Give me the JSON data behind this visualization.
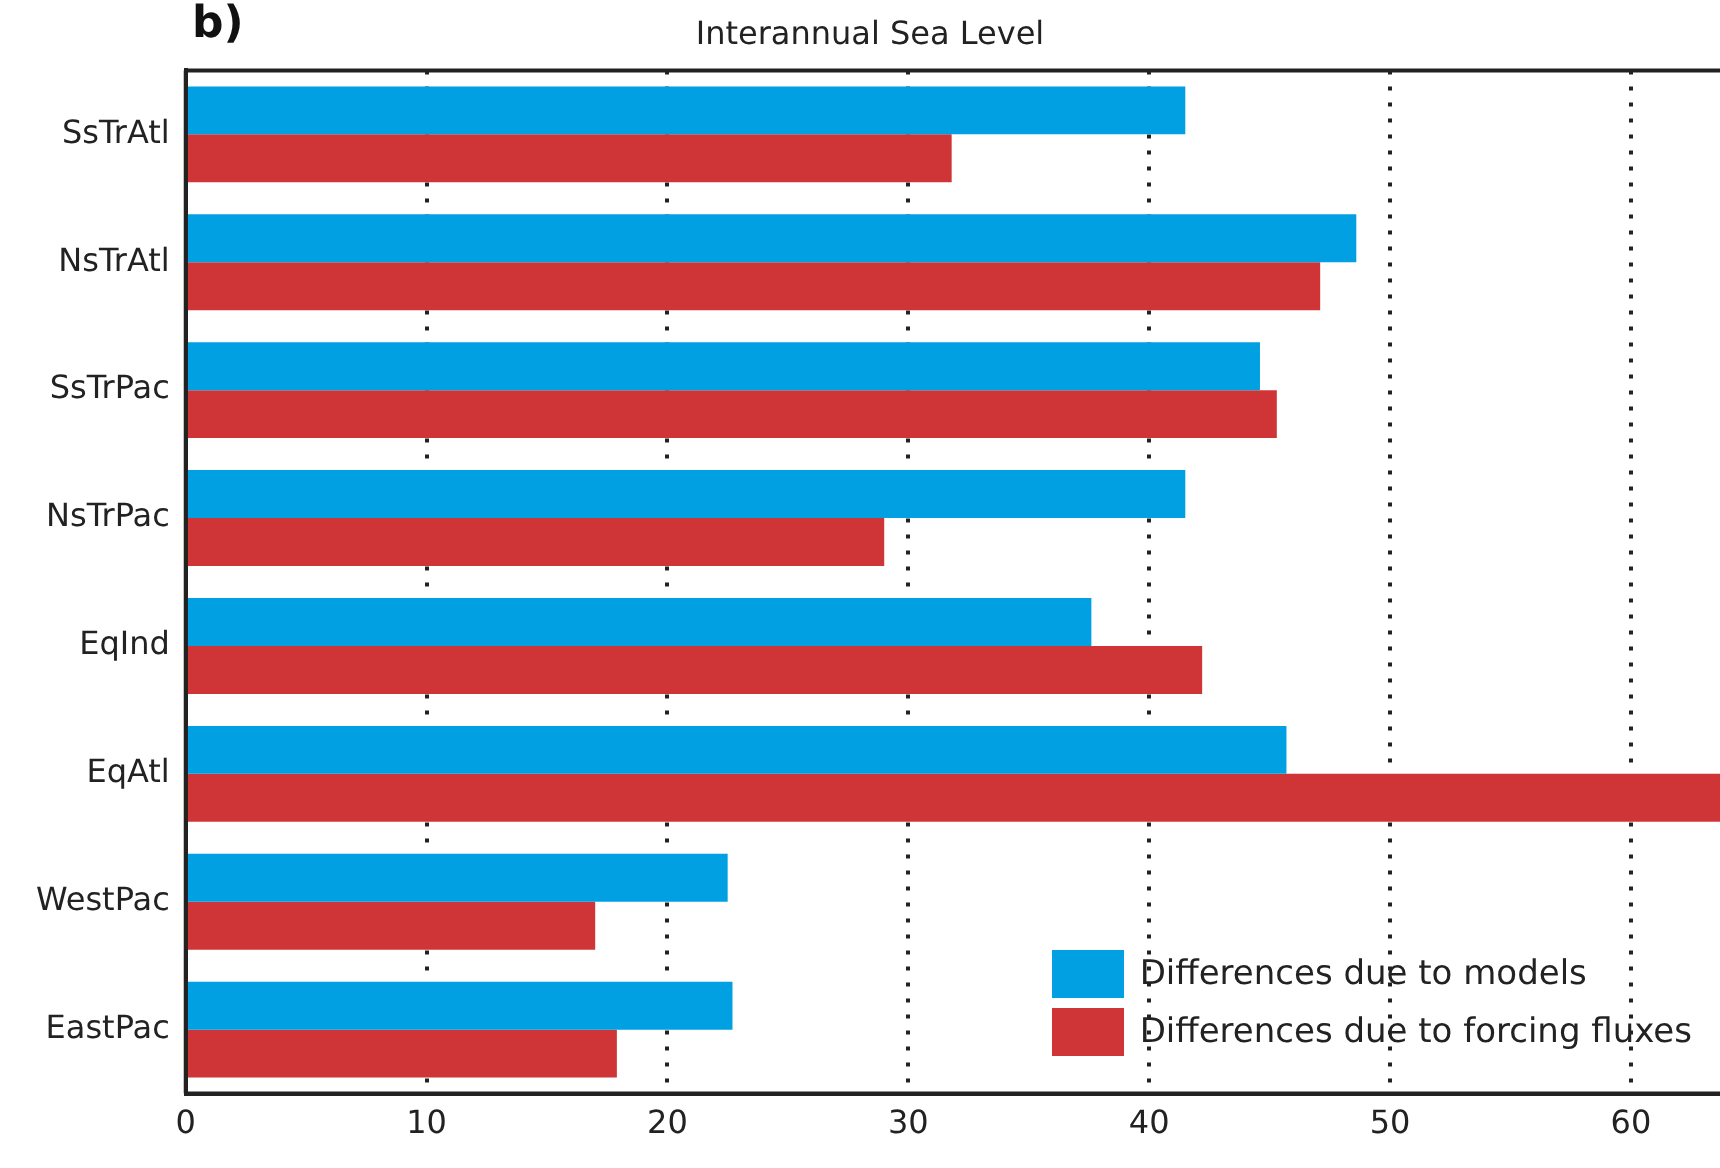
{
  "chart_data": {
    "type": "bar",
    "orientation": "horizontal",
    "title": "Interannual Sea Level",
    "annotations": [
      "b)"
    ],
    "categories": [
      "SsTrAtl",
      "NsTrAtl",
      "SsTrPac",
      "NsTrPac",
      "EqInd",
      "EqAtl",
      "WestPac",
      "EastPac"
    ],
    "series": [
      {
        "name": "Differences due to models",
        "color": "#00a0e2",
        "values": [
          41.5,
          48.6,
          44.6,
          41.5,
          37.6,
          45.7,
          22.5,
          22.7
        ]
      },
      {
        "name": "Differences due to forcing fluxes",
        "color": "#cf3437",
        "values": [
          31.8,
          47.1,
          45.3,
          29.0,
          42.2,
          63.7,
          17.0,
          17.9
        ]
      }
    ],
    "xlim": [
      0,
      63.7
    ],
    "xticks": [
      0,
      10,
      20,
      30,
      40,
      50,
      60
    ],
    "grid": "x",
    "legend": "bottom right"
  }
}
